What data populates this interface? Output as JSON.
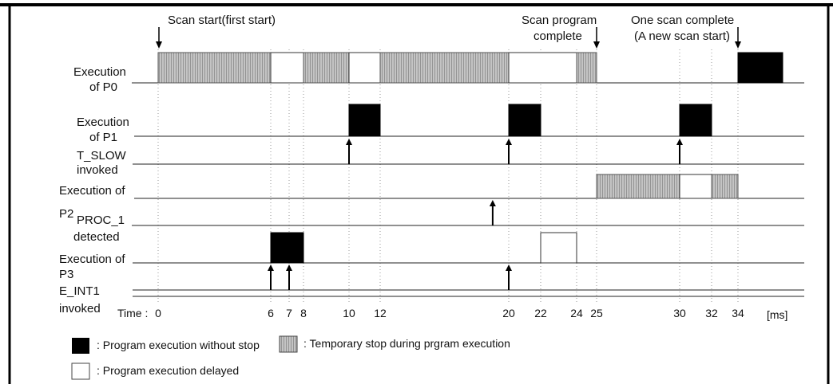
{
  "rows": [
    {
      "id": "p0",
      "label": [
        "Execution",
        "of P0"
      ]
    },
    {
      "id": "p1",
      "label": [
        "Execution",
        "of P1"
      ]
    },
    {
      "id": "t_slow",
      "label": [
        "T_SLOW",
        "invoked"
      ]
    },
    {
      "id": "p2",
      "label": [
        "Execution of",
        "P2"
      ]
    },
    {
      "id": "proc_1",
      "label": [
        "PROC_1",
        "detected"
      ]
    },
    {
      "id": "p3",
      "label": [
        "Execution of",
        "P3"
      ]
    },
    {
      "id": "e_int1",
      "label": [
        "E_INT1",
        "invoked"
      ]
    }
  ],
  "annotations": {
    "scan_start": "Scan start(first start)",
    "scan_complete": [
      "Scan program",
      "complete"
    ],
    "one_scan": [
      "One scan complete",
      "(A new scan start)"
    ]
  },
  "time_axis": {
    "label": "Time :",
    "unit": "[ms]",
    "ticks": [
      "0",
      "6",
      "7",
      "8",
      "10",
      "12",
      "20",
      "22",
      "24",
      "25",
      "30",
      "32",
      "34"
    ]
  },
  "legend": {
    "run": ": Program execution without stop",
    "paused": ": Temporary stop during prgram execution",
    "delayed": ": Program execution delayed"
  },
  "colors": {
    "run": "#000000",
    "paused": "#b8b8b8",
    "delayed": "#ffffff",
    "line": "#222222"
  },
  "blocks": [
    {
      "row": "p0",
      "start": 0,
      "end": 6,
      "kind": "paused"
    },
    {
      "row": "p0",
      "start": 6,
      "end": 8,
      "kind": "delayed"
    },
    {
      "row": "p0",
      "start": 8,
      "end": 10,
      "kind": "paused"
    },
    {
      "row": "p0",
      "start": 10,
      "end": 12,
      "kind": "delayed"
    },
    {
      "row": "p0",
      "start": 12,
      "end": 20,
      "kind": "paused"
    },
    {
      "row": "p0",
      "start": 20,
      "end": 24,
      "kind": "delayed"
    },
    {
      "row": "p0",
      "start": 24,
      "end": 25,
      "kind": "paused"
    },
    {
      "row": "p0",
      "start": 34,
      "end": 37,
      "kind": "run"
    },
    {
      "row": "p1",
      "start": 10,
      "end": 12,
      "kind": "run"
    },
    {
      "row": "p1",
      "start": 20,
      "end": 22,
      "kind": "run"
    },
    {
      "row": "p1",
      "start": 30,
      "end": 32,
      "kind": "run"
    },
    {
      "row": "p2",
      "start": 25,
      "end": 30,
      "kind": "paused"
    },
    {
      "row": "p2",
      "start": 30,
      "end": 32,
      "kind": "delayed"
    },
    {
      "row": "p2",
      "start": 32,
      "end": 34,
      "kind": "paused"
    },
    {
      "row": "p3",
      "start": 6,
      "end": 8,
      "kind": "run"
    },
    {
      "row": "p3",
      "start": 22,
      "end": 24,
      "kind": "delayed"
    }
  ],
  "events": [
    {
      "row": "t_slow",
      "time": 10
    },
    {
      "row": "t_slow",
      "time": 20
    },
    {
      "row": "t_slow",
      "time": 30
    },
    {
      "row": "proc_1",
      "time": 19
    },
    {
      "row": "e_int1",
      "time": 6
    },
    {
      "row": "e_int1",
      "time": 7
    },
    {
      "row": "e_int1",
      "time": 20
    }
  ]
}
